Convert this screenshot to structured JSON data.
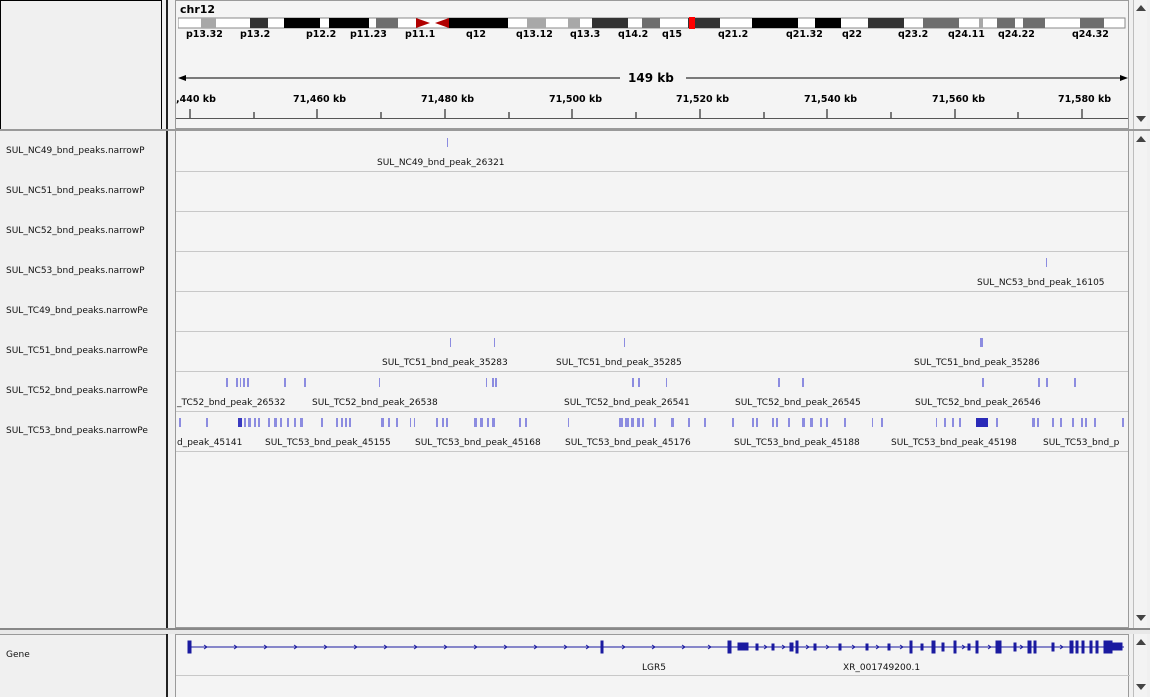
{
  "header": {
    "chromosome": "chr12",
    "span": "149 kb",
    "cytobands": [
      "p13.32",
      "p13.2",
      "p12.2",
      "p11.23",
      "p11.1",
      "q12",
      "q13.12",
      "q13.3",
      "q14.2",
      "q15",
      "q21.2",
      "q21.32",
      "q22",
      "q23.2",
      "q24.11",
      "q24.22",
      "q24.32"
    ],
    "ruler_ticks": [
      ",440 kb",
      "71,460 kb",
      "71,480 kb",
      "71,500 kb",
      "71,520 kb",
      "71,540 kb",
      "71,560 kb",
      "71,580 kb"
    ]
  },
  "tracks": [
    {
      "name": "SUL_NC49_bnd_peaks.narrowP",
      "peaks": [
        {
          "label": "SUL_NC49_bnd_peak_26321"
        }
      ]
    },
    {
      "name": "SUL_NC51_bnd_peaks.narrowP",
      "peaks": []
    },
    {
      "name": "SUL_NC52_bnd_peaks.narrowP",
      "peaks": []
    },
    {
      "name": "SUL_NC53_bnd_peaks.narrowP",
      "peaks": [
        {
          "label": "SUL_NC53_bnd_peak_16105"
        }
      ]
    },
    {
      "name": "SUL_TC49_bnd_peaks.narrowPe",
      "peaks": []
    },
    {
      "name": "SUL_TC51_bnd_peaks.narrowPe",
      "peaks": [
        {
          "label": "SUL_TC51_bnd_peak_35283"
        },
        {
          "label": "SUL_TC51_bnd_peak_35285"
        },
        {
          "label": "SUL_TC51_bnd_peak_35286"
        }
      ]
    },
    {
      "name": "SUL_TC52_bnd_peaks.narrowPe",
      "peaks": [
        {
          "label": "_TC52_bnd_peak_26532"
        },
        {
          "label": "SUL_TC52_bnd_peak_26538"
        },
        {
          "label": "SUL_TC52_bnd_peak_26541"
        },
        {
          "label": "SUL_TC52_bnd_peak_26545"
        },
        {
          "label": "SUL_TC52_bnd_peak_26546"
        }
      ]
    },
    {
      "name": "SUL_TC53_bnd_peaks.narrowPe",
      "peaks": [
        {
          "label": "d_peak_45141"
        },
        {
          "label": "SUL_TC53_bnd_peak_45155"
        },
        {
          "label": "SUL_TC53_bnd_peak_45168"
        },
        {
          "label": "SUL_TC53_bnd_peak_45176"
        },
        {
          "label": "SUL_TC53_bnd_peak_45188"
        },
        {
          "label": "SUL_TC53_bnd_peak_45198"
        },
        {
          "label": "SUL_TC53_bnd_p"
        }
      ]
    }
  ],
  "gene_track": {
    "name": "Gene",
    "genes": [
      {
        "label": "LGR5"
      },
      {
        "label": "XR_001749200.1"
      }
    ]
  },
  "colors": {
    "peak": "#8c8ce0",
    "gene": "#1a1aa0",
    "centromere": "#b00000",
    "current": "#ff0000"
  },
  "icons": {
    "scroll_up": "triangle-up-icon",
    "scroll_down": "triangle-down-icon"
  }
}
